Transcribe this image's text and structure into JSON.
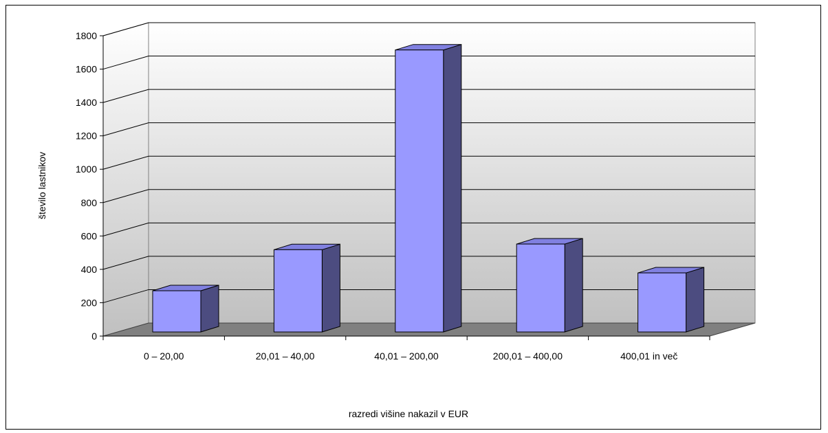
{
  "chart_data": {
    "type": "bar",
    "categories": [
      "0 – 20,00",
      "20,01 – 40,00",
      "40,01 – 200,00",
      "200,01 – 400,00",
      "400,01 in več"
    ],
    "series": [
      {
        "values": [
          247,
          493,
          1690,
          527,
          354
        ]
      }
    ],
    "xlabel": "razredi višine nakazil v EUR",
    "ylabel": "število lastnikov",
    "ylim": [
      0,
      1800
    ],
    "yticks": [
      "0",
      "200",
      "400",
      "600",
      "800",
      "1000",
      "1200",
      "1400",
      "1600",
      "1800"
    ],
    "grid": true,
    "style": "3d",
    "colors": {
      "bar_front": "#9999ff",
      "bar_side": "#4c4c80",
      "bar_top": "#8080e0",
      "floor": "#808080",
      "wall_top": "#ffffff",
      "wall_bottom": "#c0c0c0"
    }
  }
}
